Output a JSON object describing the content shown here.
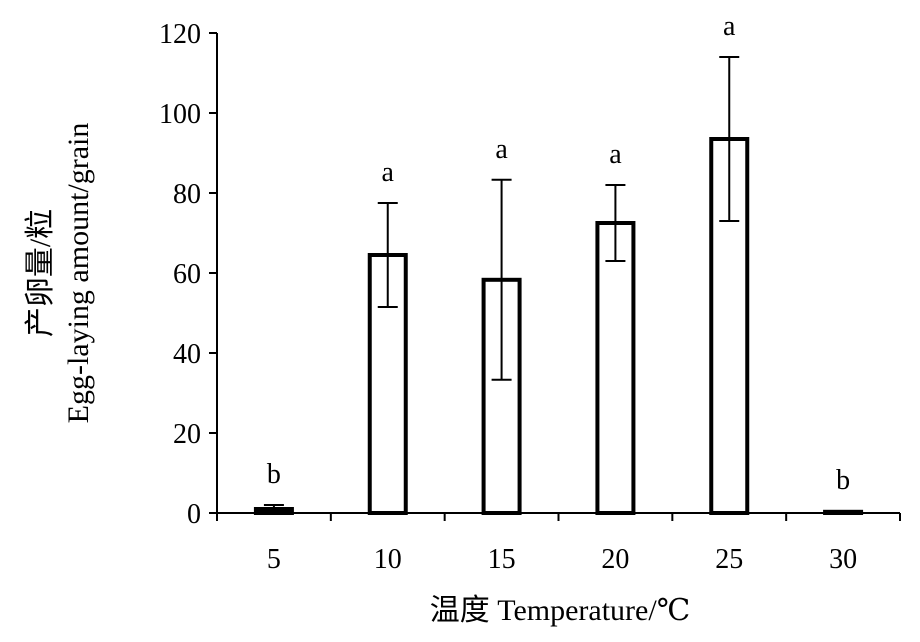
{
  "chart_data": {
    "type": "bar",
    "xlabel": "温度 Temperature/℃",
    "ylabel_line1": "产卵量/粒",
    "ylabel_line2": "Egg-laying amount/grain",
    "ylim": [
      0,
      120
    ],
    "yticks": [
      0,
      20,
      40,
      60,
      80,
      100,
      120
    ],
    "categories": [
      "5",
      "10",
      "15",
      "20",
      "25",
      "30"
    ],
    "values": [
      1.0,
      64.5,
      58.3,
      72.5,
      93.5,
      0.3
    ],
    "errors": [
      1.0,
      13.0,
      25.0,
      9.5,
      20.5,
      0.2
    ],
    "significance": [
      "b",
      "a",
      "a",
      "a",
      "a",
      "b"
    ],
    "grid": false,
    "legend": "none"
  }
}
